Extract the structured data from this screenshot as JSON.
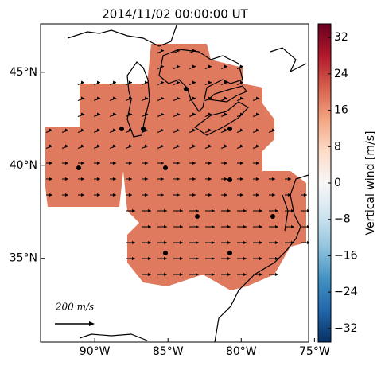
{
  "chart_data": {
    "type": "map",
    "title": "2014/11/02 00:00:00 UT",
    "xlim": [
      -93.7,
      -75.4
    ],
    "ylim": [
      30.5,
      47.6
    ],
    "xticks": [
      {
        "value": -90,
        "label": "90°W"
      },
      {
        "value": -85,
        "label": "85°W"
      },
      {
        "value": -80,
        "label": "80°W"
      },
      {
        "value": -75,
        "label": "75°W"
      }
    ],
    "yticks": [
      {
        "value": 35,
        "label": "35°N"
      },
      {
        "value": 40,
        "label": "40°N"
      },
      {
        "value": 45,
        "label": "45°N"
      }
    ],
    "region_color": "#e07a5f",
    "colorbar": {
      "label": "Vertical wind [m/s]",
      "lim": [
        -35,
        35
      ],
      "ticks": [
        {
          "value": -32,
          "label": "−32"
        },
        {
          "value": -24,
          "label": "−24"
        },
        {
          "value": -16,
          "label": "−16"
        },
        {
          "value": -8,
          "label": "−8"
        },
        0,
        8,
        16,
        24,
        32
      ],
      "colors": [
        "#053061",
        "#2166ac",
        "#4393c3",
        "#92c5de",
        "#d1e5f0",
        "#f7f7f7",
        "#fddbc7",
        "#f4a582",
        "#d6604d",
        "#b2182b",
        "#67001f"
      ]
    },
    "scale_label": "200 m/s"
  }
}
